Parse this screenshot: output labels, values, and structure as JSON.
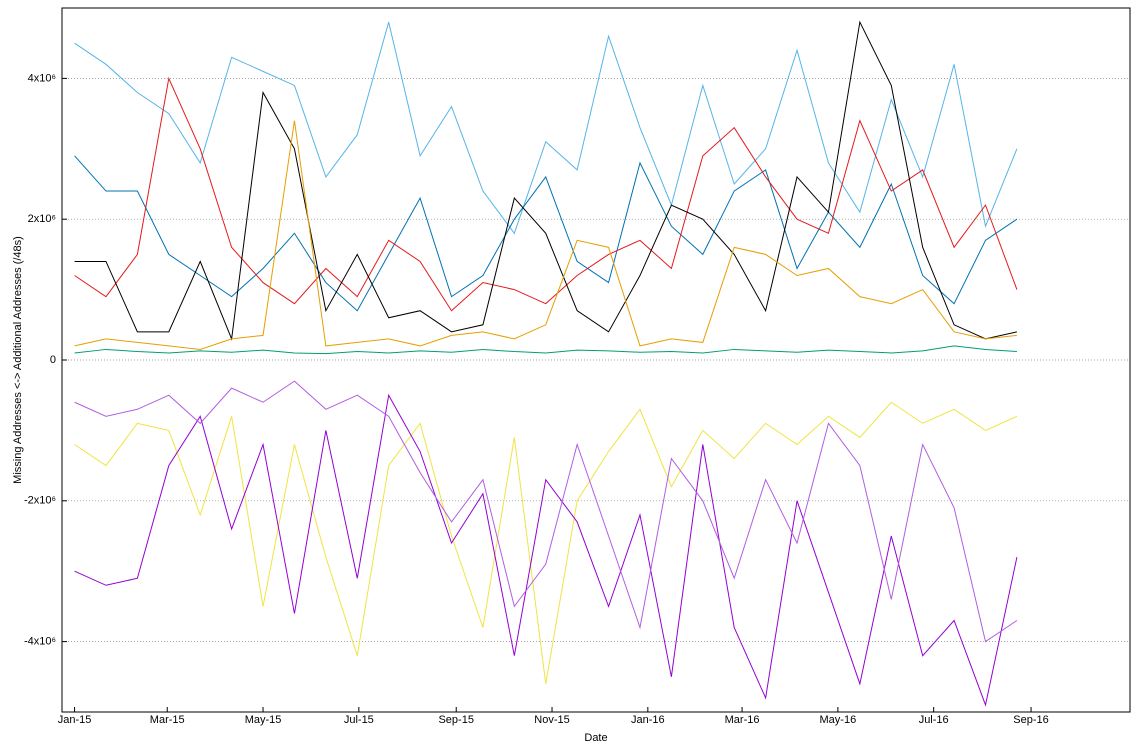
{
  "chart_data": {
    "type": "line",
    "xlabel": "Date",
    "ylabel": "Missing Addresses <-> Additional Addresses (/48s)",
    "x": [
      0,
      20,
      40,
      60,
      80,
      100,
      120,
      140,
      160,
      180,
      200,
      220,
      240,
      260,
      280,
      300,
      320,
      340,
      360,
      380,
      400,
      420,
      440,
      460,
      480,
      500,
      520,
      540,
      560,
      580,
      600
    ],
    "xlim": [
      -8,
      672
    ],
    "xticks": [
      {
        "value": 0,
        "label": "Jan-15"
      },
      {
        "value": 59,
        "label": "Mar-15"
      },
      {
        "value": 120,
        "label": "May-15"
      },
      {
        "value": 181,
        "label": "Jul-15"
      },
      {
        "value": 243,
        "label": "Sep-15"
      },
      {
        "value": 304,
        "label": "Nov-15"
      },
      {
        "value": 365,
        "label": "Jan-16"
      },
      {
        "value": 425,
        "label": "Mar-16"
      },
      {
        "value": 486,
        "label": "May-16"
      },
      {
        "value": 547,
        "label": "Jul-16"
      },
      {
        "value": 609,
        "label": "Sep-16"
      }
    ],
    "ylim": [
      -5000000,
      5000000
    ],
    "yticks": [
      {
        "value": -4000000,
        "label": "-4x10⁶"
      },
      {
        "value": -2000000,
        "label": "-2x10⁶"
      },
      0,
      {
        "value": 2000000,
        "label": "2x10⁶"
      },
      {
        "value": 4000000,
        "label": "4x10⁶"
      }
    ],
    "grid": true,
    "series": [
      {
        "color": "#56b4e9",
        "values": [
          4500000,
          4200000,
          3800000,
          3500000,
          2800000,
          4300000,
          4100000,
          3900000,
          2600000,
          3200000,
          4800000,
          2900000,
          3600000,
          2400000,
          1800000,
          3100000,
          2700000,
          4600000,
          3300000,
          2200000,
          3900000,
          2500000,
          3000000,
          4400000,
          2800000,
          2100000,
          3700000,
          2600000,
          4200000,
          1900000,
          3000000
        ]
      },
      {
        "color": "#0072b2",
        "values": [
          2900000,
          2400000,
          2400000,
          1500000,
          1200000,
          900000,
          1300000,
          1800000,
          1100000,
          700000,
          1500000,
          2300000,
          900000,
          1200000,
          2000000,
          2600000,
          1400000,
          1100000,
          2800000,
          1900000,
          1500000,
          2400000,
          2700000,
          1300000,
          2100000,
          1600000,
          2500000,
          1200000,
          800000,
          1700000,
          2000000
        ]
      },
      {
        "color": "#e41a1c",
        "values": [
          1200000,
          900000,
          1500000,
          4000000,
          3000000,
          1600000,
          1100000,
          800000,
          1300000,
          900000,
          1700000,
          1400000,
          700000,
          1100000,
          1000000,
          800000,
          1200000,
          1500000,
          1700000,
          1300000,
          2900000,
          3300000,
          2600000,
          2000000,
          1800000,
          3400000,
          2400000,
          2700000,
          1600000,
          2200000,
          1000000
        ]
      },
      {
        "color": "#000000",
        "values": [
          1400000,
          1400000,
          400000,
          400000,
          1400000,
          300000,
          3800000,
          3000000,
          700000,
          1500000,
          600000,
          700000,
          400000,
          500000,
          2300000,
          1800000,
          700000,
          400000,
          1200000,
          2200000,
          2000000,
          1500000,
          700000,
          2600000,
          2100000,
          4800000,
          3900000,
          1600000,
          500000,
          300000,
          400000
        ]
      },
      {
        "color": "#e69f00",
        "values": [
          200000,
          300000,
          250000,
          200000,
          150000,
          300000,
          350000,
          3400000,
          200000,
          250000,
          300000,
          200000,
          350000,
          400000,
          300000,
          500000,
          1700000,
          1600000,
          200000,
          300000,
          250000,
          1600000,
          1500000,
          1200000,
          1300000,
          900000,
          800000,
          1000000,
          400000,
          300000,
          350000
        ]
      },
      {
        "color": "#009e73",
        "values": [
          100000,
          150000,
          120000,
          100000,
          130000,
          110000,
          140000,
          100000,
          90000,
          120000,
          100000,
          130000,
          110000,
          150000,
          120000,
          100000,
          140000,
          130000,
          110000,
          120000,
          100000,
          150000,
          130000,
          110000,
          140000,
          120000,
          100000,
          130000,
          200000,
          150000,
          120000
        ]
      },
      {
        "color": "#f0e442",
        "values": [
          -1200000,
          -1500000,
          -900000,
          -1000000,
          -2200000,
          -800000,
          -3500000,
          -1200000,
          -2800000,
          -4200000,
          -1500000,
          -900000,
          -2500000,
          -3800000,
          -1100000,
          -4600000,
          -2000000,
          -1300000,
          -700000,
          -1800000,
          -1000000,
          -1400000,
          -900000,
          -1200000,
          -800000,
          -1100000,
          -600000,
          -900000,
          -700000,
          -1000000,
          -800000
        ]
      },
      {
        "color": "#9400d3",
        "values": [
          -3000000,
          -3200000,
          -3100000,
          -1500000,
          -800000,
          -2400000,
          -1200000,
          -3600000,
          -1000000,
          -3100000,
          -500000,
          -1300000,
          -2600000,
          -1900000,
          -4200000,
          -1700000,
          -2300000,
          -3500000,
          -2200000,
          -4500000,
          -1200000,
          -3800000,
          -4800000,
          -2000000,
          -3300000,
          -4600000,
          -2500000,
          -4200000,
          -3700000,
          -4900000,
          -2800000
        ]
      },
      {
        "color": "#b15ee0",
        "values": [
          -600000,
          -800000,
          -700000,
          -500000,
          -900000,
          -400000,
          -600000,
          -300000,
          -700000,
          -500000,
          -800000,
          -1600000,
          -2300000,
          -1700000,
          -3500000,
          -2900000,
          -1200000,
          -2500000,
          -3800000,
          -1400000,
          -2000000,
          -3100000,
          -1700000,
          -2600000,
          -900000,
          -1500000,
          -3400000,
          -1200000,
          -2100000,
          -4000000,
          -3700000
        ]
      }
    ]
  }
}
